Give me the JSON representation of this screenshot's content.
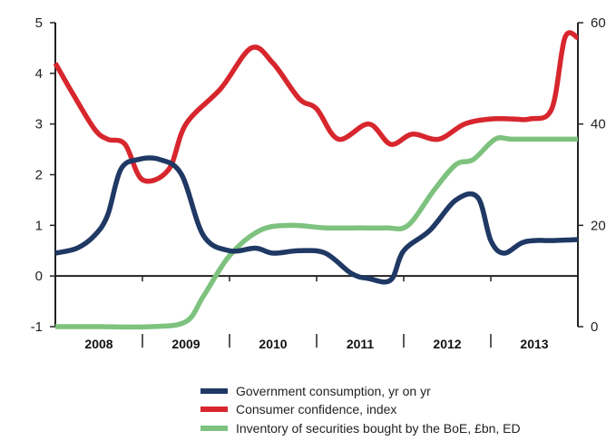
{
  "chart_data": {
    "type": "line",
    "title": "",
    "xlabel": "",
    "ylabel": "",
    "y_left": {
      "min": -1,
      "max": 5,
      "ticks": [
        -1,
        0,
        1,
        2,
        3,
        4,
        5
      ]
    },
    "y_right": {
      "min": 0,
      "max": 60,
      "ticks": [
        0,
        20,
        40,
        60
      ]
    },
    "x_range": [
      2007.5,
      2013.5
    ],
    "year_labels": [
      "2008",
      "2009",
      "2010",
      "2011",
      "2012",
      "2013"
    ],
    "year_label_positions": [
      2008,
      2009,
      2010,
      2011,
      2012,
      2013
    ],
    "year_dividers": [
      2008.5,
      2009.5,
      2010.5,
      2011.5,
      2012.5
    ],
    "grid": false,
    "legend_position": "bottom",
    "series": [
      {
        "name": "Government consumption, yr on yr",
        "axis": "left",
        "color": "#1f3864",
        "x": [
          2007.5,
          2007.75,
          2007.95,
          2008.1,
          2008.25,
          2008.45,
          2008.7,
          2008.95,
          2009.2,
          2009.5,
          2009.8,
          2010.0,
          2010.3,
          2010.6,
          2010.9,
          2011.1,
          2011.35,
          2011.5,
          2011.8,
          2012.1,
          2012.35,
          2012.5,
          2012.65,
          2012.85,
          2013.0,
          2013.2,
          2013.5
        ],
        "y": [
          0.45,
          0.55,
          0.8,
          1.2,
          2.1,
          2.3,
          2.3,
          2.0,
          0.8,
          0.5,
          0.55,
          0.45,
          0.5,
          0.45,
          0.05,
          -0.05,
          -0.08,
          0.5,
          0.9,
          1.5,
          1.55,
          0.7,
          0.45,
          0.65,
          0.7,
          0.7,
          0.72
        ]
      },
      {
        "name": "Consumer confidence, index",
        "axis": "right",
        "color": "#d7262d",
        "x": [
          2007.5,
          2007.7,
          2007.95,
          2008.1,
          2008.3,
          2008.5,
          2008.8,
          2009.0,
          2009.4,
          2009.75,
          2010.0,
          2010.3,
          2010.5,
          2010.75,
          2011.1,
          2011.35,
          2011.6,
          2011.9,
          2012.2,
          2012.5,
          2012.75,
          2012.95,
          2013.2,
          2013.35,
          2013.5
        ],
        "y": [
          52,
          46,
          39,
          37,
          36,
          29,
          31,
          40,
          47,
          55,
          52,
          45,
          43,
          37,
          40,
          36,
          38,
          37,
          40,
          41,
          41,
          41,
          43,
          57,
          57
        ]
      },
      {
        "name": "Inventory of securities bought by the BoE, £bn, ED",
        "axis": "right",
        "color": "#7dc27e",
        "x": [
          2007.5,
          2008.0,
          2008.6,
          2009.0,
          2009.2,
          2009.5,
          2009.85,
          2010.2,
          2010.6,
          2011.0,
          2011.3,
          2011.55,
          2011.85,
          2012.1,
          2012.3,
          2012.55,
          2012.75,
          2013.2,
          2013.5
        ],
        "y": [
          0,
          0,
          0,
          1,
          6,
          14,
          19,
          20,
          19.5,
          19.5,
          19.5,
          20,
          27,
          32,
          33,
          37,
          37,
          37,
          37
        ]
      }
    ]
  }
}
